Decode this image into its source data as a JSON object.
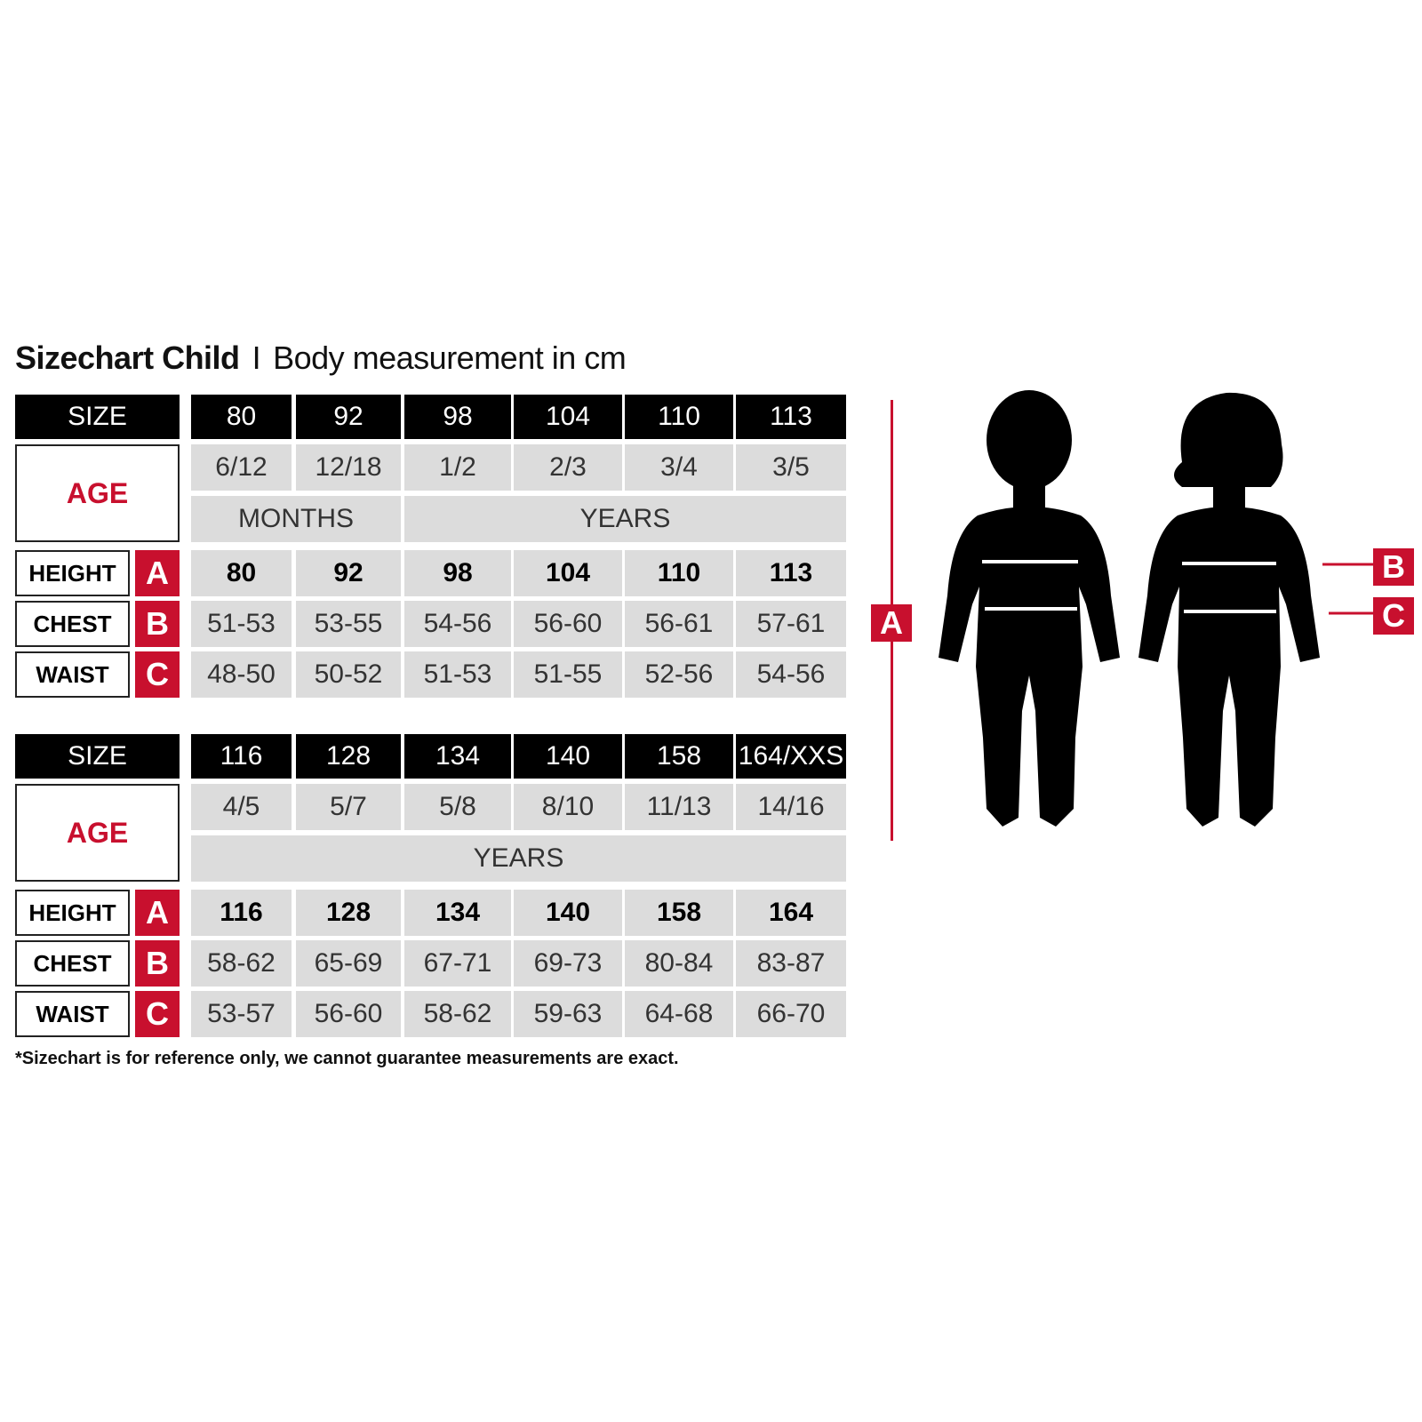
{
  "title": {
    "bold": "Sizechart Child",
    "separator": "I",
    "rest": "Body measurement in cm"
  },
  "colors": {
    "accent": "#c8102e",
    "header": "#000000",
    "cell": "#dcdcdc"
  },
  "tables": [
    {
      "size_label": "SIZE",
      "sizes": [
        "80",
        "92",
        "98",
        "104",
        "110",
        "113"
      ],
      "age_label": "AGE",
      "ages": [
        "6/12",
        "12/18",
        "1/2",
        "2/3",
        "3/4",
        "3/5"
      ],
      "units": [
        {
          "label": "MONTHS",
          "span": 2
        },
        {
          "label": "YEARS",
          "span": 4
        }
      ],
      "rows": [
        {
          "label": "HEIGHT",
          "letter": "A",
          "values": [
            "80",
            "92",
            "98",
            "104",
            "110",
            "113"
          ]
        },
        {
          "label": "CHEST",
          "letter": "B",
          "values": [
            "51-53",
            "53-55",
            "54-56",
            "56-60",
            "56-61",
            "57-61"
          ]
        },
        {
          "label": "WAIST",
          "letter": "C",
          "values": [
            "48-50",
            "50-52",
            "51-53",
            "51-55",
            "52-56",
            "54-56"
          ]
        }
      ]
    },
    {
      "size_label": "SIZE",
      "sizes": [
        "116",
        "128",
        "134",
        "140",
        "158",
        "164/XXS"
      ],
      "age_label": "AGE",
      "ages": [
        "4/5",
        "5/7",
        "5/8",
        "8/10",
        "11/13",
        "14/16"
      ],
      "units": [
        {
          "label": "YEARS",
          "span": 6
        }
      ],
      "rows": [
        {
          "label": "HEIGHT",
          "letter": "A",
          "values": [
            "116",
            "128",
            "134",
            "140",
            "158",
            "164"
          ]
        },
        {
          "label": "CHEST",
          "letter": "B",
          "values": [
            "58-62",
            "65-69",
            "67-71",
            "69-73",
            "80-84",
            "83-87"
          ]
        },
        {
          "label": "WAIST",
          "letter": "C",
          "values": [
            "53-57",
            "56-60",
            "58-62",
            "59-63",
            "64-68",
            "66-70"
          ]
        }
      ]
    }
  ],
  "footnote": "*Sizechart is for reference only, we cannot guarantee measurements are exact.",
  "figure": {
    "markers": [
      "A",
      "B",
      "C"
    ],
    "icons": [
      "boy-silhouette-icon",
      "girl-silhouette-icon"
    ]
  }
}
